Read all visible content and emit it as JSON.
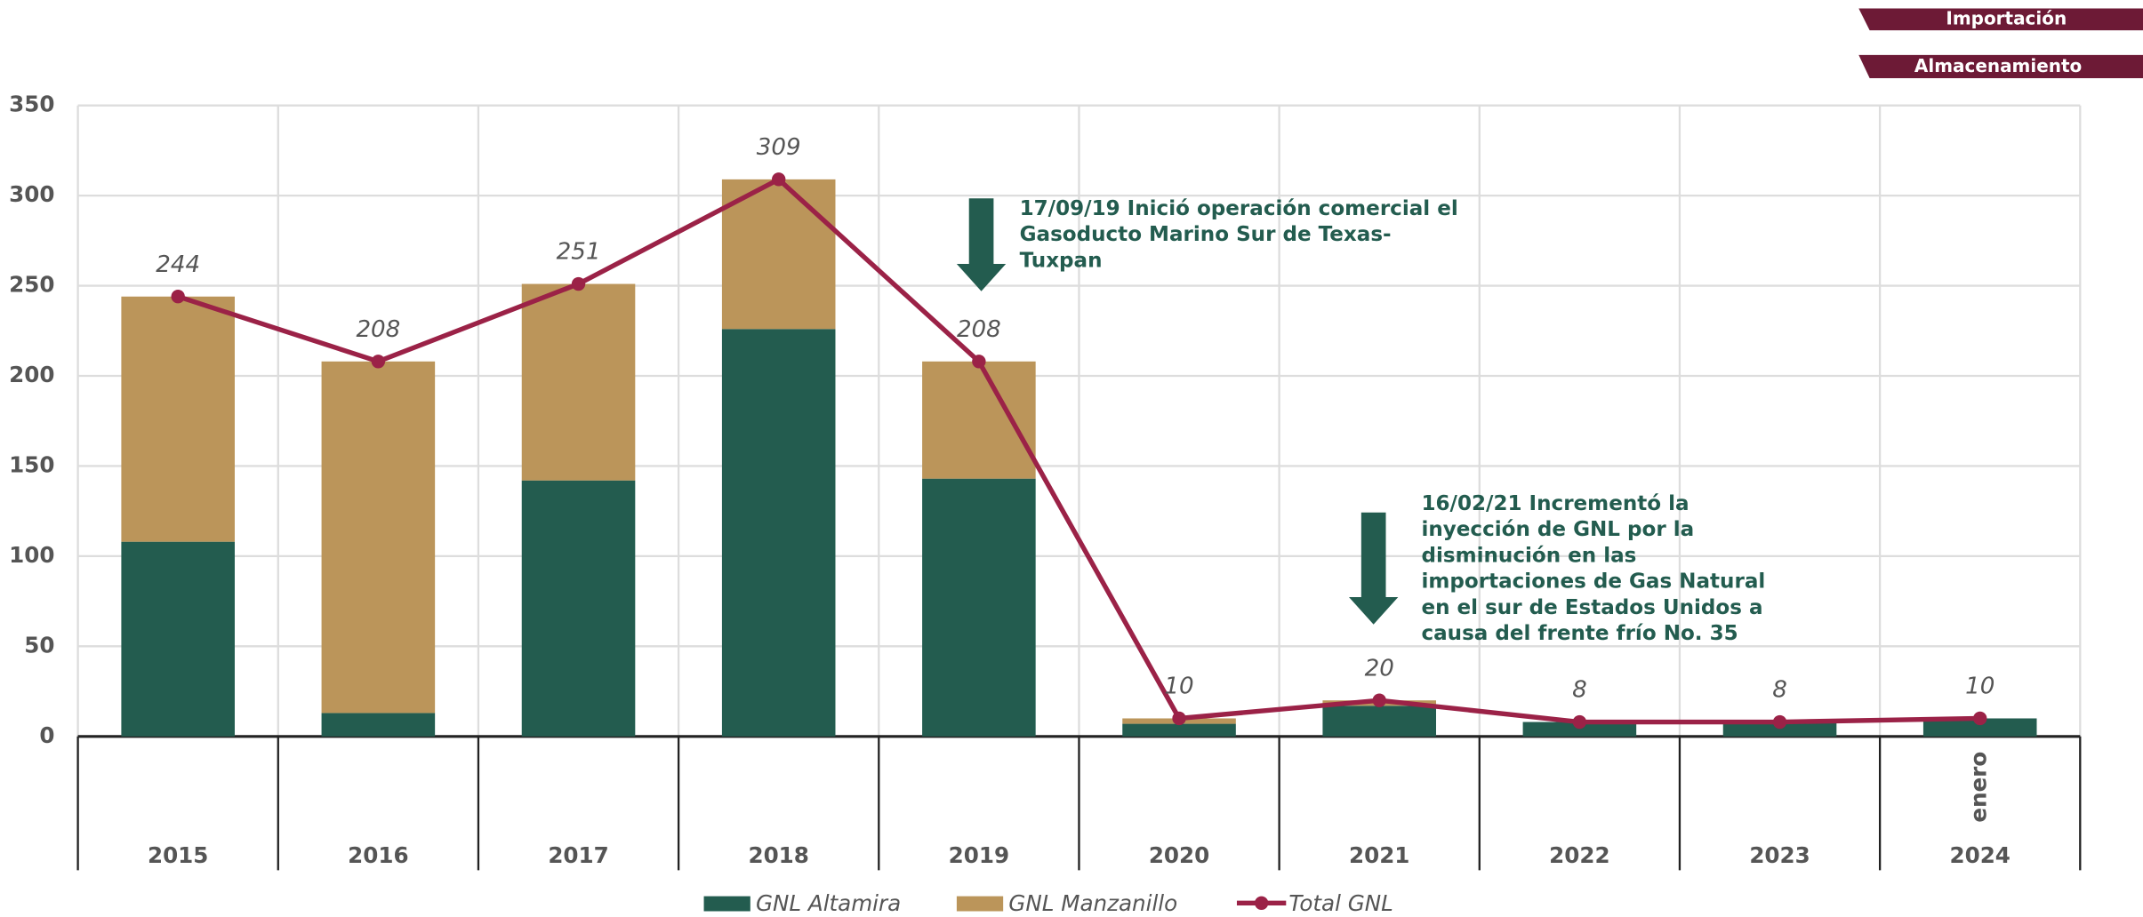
{
  "buttons": [
    "Importación",
    "Almacenamiento"
  ],
  "chart_data": {
    "type": "bar",
    "categories": [
      "2015",
      "2016",
      "2017",
      "2018",
      "2019",
      "2020",
      "2021",
      "2022",
      "2023",
      "2024"
    ],
    "category_notes": [
      null,
      null,
      null,
      null,
      null,
      null,
      null,
      null,
      null,
      "enero"
    ],
    "series": [
      {
        "name": "GNL Altamira",
        "color": "#235c4f",
        "values": [
          108,
          13,
          142,
          226,
          143,
          7,
          17,
          8,
          8,
          10
        ]
      },
      {
        "name": "GNL Manzanillo",
        "color": "#bb955a",
        "values": [
          136,
          195,
          109,
          83,
          65,
          3,
          3,
          0,
          0,
          0
        ]
      },
      {
        "name": "Total GNL",
        "type": "line",
        "color": "#9b2247",
        "values": [
          244,
          208,
          251,
          309,
          208,
          10,
          20,
          8,
          8,
          10
        ]
      }
    ],
    "ylim": [
      0,
      350
    ],
    "yticks": [
      0,
      50,
      100,
      150,
      200,
      250,
      300,
      350
    ],
    "grid": true,
    "annotations": [
      {
        "lines": [
          "17/09/19 Inició operación comercial el",
          "Gasoducto Marino Sur de Texas-",
          "Tuxpan"
        ]
      },
      {
        "lines": [
          "16/02/21 Incrementó la",
          "inyección de GNL por la",
          "disminución en las",
          "importaciones de Gas Natural",
          "en el sur de Estados Unidos a",
          "causa del frente frío No. 35"
        ]
      }
    ]
  }
}
